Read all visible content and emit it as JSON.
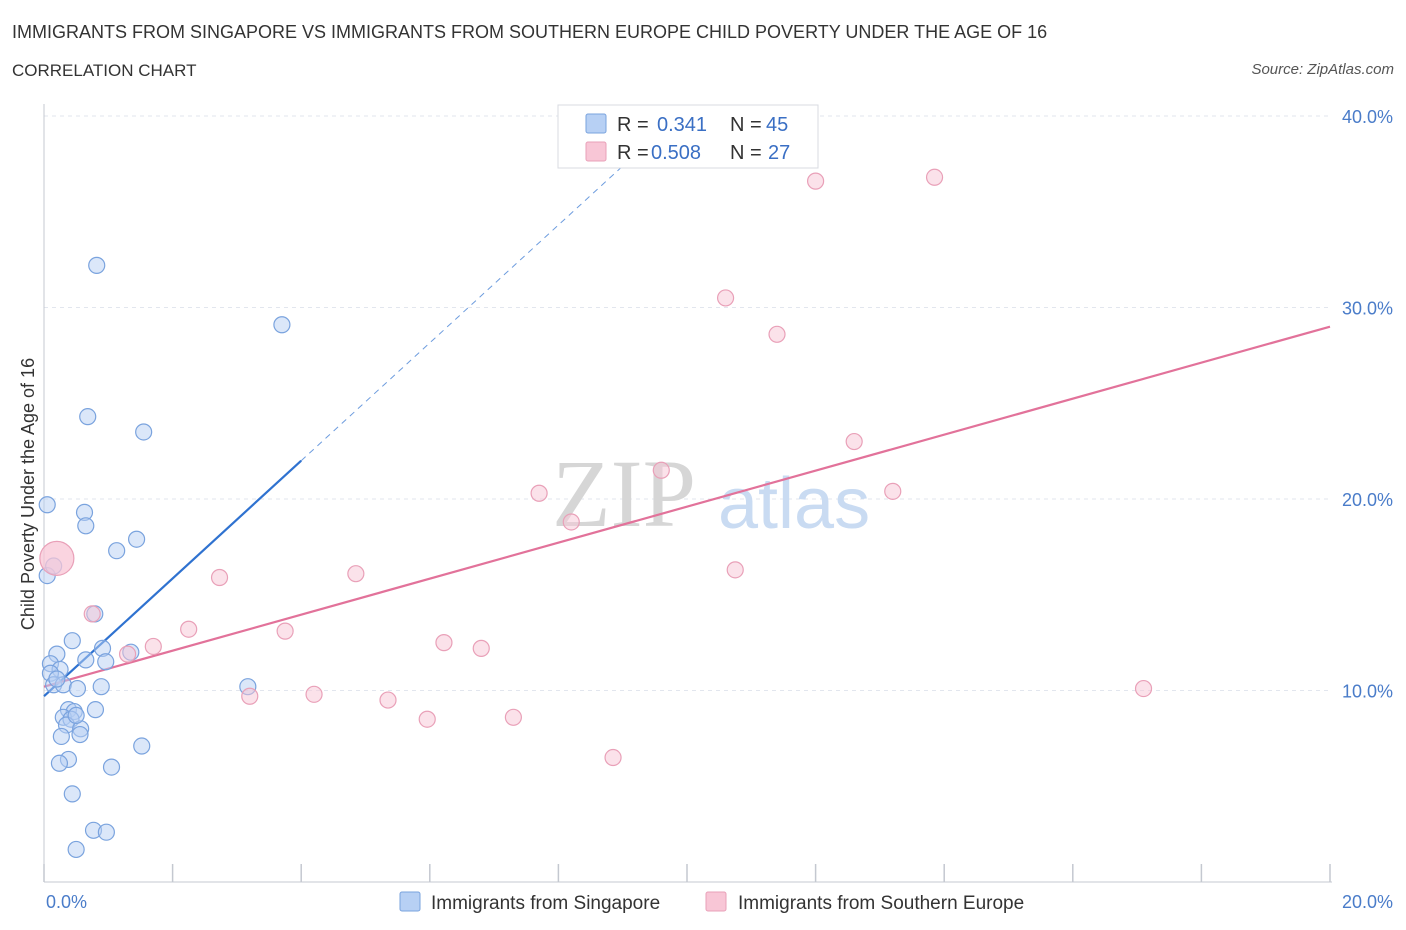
{
  "title": "IMMIGRANTS FROM SINGAPORE VS IMMIGRANTS FROM SOUTHERN EUROPE CHILD POVERTY UNDER THE AGE OF 16",
  "subtitle": "CORRELATION CHART",
  "source": "Source: ZipAtlas.com",
  "watermark": {
    "zip": "ZIP",
    "atlas": "atlas"
  },
  "colors": {
    "blue_fill": "#b7d0f4",
    "blue_stroke": "#7aa3de",
    "blue_line": "#2f72d0",
    "pink_fill": "#f8c6d6",
    "pink_stroke": "#e9a0b8",
    "pink_line": "#e2729a",
    "grid": "#e2e6ee",
    "tick_text": "#4a7cc9"
  },
  "stats": {
    "r_label": "R =",
    "n_label": "N =",
    "rows": [
      {
        "r": "0.341",
        "n": "45",
        "color": "blue"
      },
      {
        "r": "0.508",
        "n": "27",
        "color": "pink"
      }
    ]
  },
  "chart_data": {
    "type": "scatter",
    "title": "IMMIGRANTS FROM SINGAPORE VS IMMIGRANTS FROM SOUTHERN EUROPE CHILD POVERTY UNDER THE AGE OF 16",
    "xlabel": "",
    "ylabel": "Child Poverty Under the Age of 16",
    "xlim": [
      0,
      20
    ],
    "ylim": [
      0,
      40
    ],
    "x_tick_labels": [
      {
        "value": 0,
        "label": "0.0%"
      },
      {
        "value": 20,
        "label": "20.0%"
      }
    ],
    "y_tick_labels": [
      {
        "value": 10,
        "label": "10.0%"
      },
      {
        "value": 20,
        "label": "20.0%"
      },
      {
        "value": 30,
        "label": "30.0%"
      },
      {
        "value": 40,
        "label": "40.0%"
      }
    ],
    "x_minor_ticks": [
      0,
      2,
      4,
      6,
      8,
      10,
      12,
      14,
      16,
      18,
      20
    ],
    "legend": [
      "Immigrants from Singapore",
      "Immigrants from Southern Europe"
    ],
    "series": [
      {
        "name": "Immigrants from Singapore",
        "color": "blue",
        "points": [
          [
            0.82,
            32.2
          ],
          [
            3.7,
            29.1
          ],
          [
            0.68,
            24.3
          ],
          [
            1.55,
            23.5
          ],
          [
            0.05,
            19.7
          ],
          [
            0.63,
            19.3
          ],
          [
            0.65,
            18.6
          ],
          [
            1.44,
            17.9
          ],
          [
            1.13,
            17.3
          ],
          [
            0.05,
            16.0
          ],
          [
            0.79,
            14.0
          ],
          [
            0.44,
            12.6
          ],
          [
            1.35,
            12.0
          ],
          [
            0.2,
            11.9
          ],
          [
            0.91,
            12.2
          ],
          [
            0.65,
            11.6
          ],
          [
            0.96,
            11.5
          ],
          [
            0.1,
            11.4
          ],
          [
            0.25,
            11.1
          ],
          [
            0.1,
            10.9
          ],
          [
            0.15,
            10.3
          ],
          [
            0.3,
            10.3
          ],
          [
            0.52,
            10.1
          ],
          [
            0.89,
            10.2
          ],
          [
            3.17,
            10.2
          ],
          [
            0.38,
            9.0
          ],
          [
            0.47,
            8.9
          ],
          [
            0.8,
            9.0
          ],
          [
            0.3,
            8.6
          ],
          [
            0.42,
            8.5
          ],
          [
            0.35,
            8.2
          ],
          [
            0.57,
            8.0
          ],
          [
            0.27,
            7.6
          ],
          [
            0.56,
            7.7
          ],
          [
            1.52,
            7.1
          ],
          [
            0.38,
            6.4
          ],
          [
            0.24,
            6.2
          ],
          [
            1.05,
            6.0
          ],
          [
            0.44,
            4.6
          ],
          [
            0.77,
            2.7
          ],
          [
            0.97,
            2.6
          ],
          [
            0.5,
            1.7
          ],
          [
            0.15,
            16.5
          ],
          [
            0.2,
            10.6
          ],
          [
            0.5,
            8.7
          ]
        ],
        "trend": [
          [
            0.0,
            9.7
          ],
          [
            4.0,
            22.0
          ]
        ],
        "trend_ext": [
          [
            4.0,
            22.0
          ],
          [
            9.2,
            38.0
          ]
        ]
      },
      {
        "name": "Immigrants from Southern Europe",
        "color": "pink",
        "points": [
          [
            0.2,
            16.9
          ],
          [
            12.0,
            36.6
          ],
          [
            13.85,
            36.8
          ],
          [
            10.6,
            30.5
          ],
          [
            11.4,
            28.6
          ],
          [
            12.6,
            23.0
          ],
          [
            9.6,
            21.5
          ],
          [
            7.7,
            20.3
          ],
          [
            13.2,
            20.4
          ],
          [
            8.2,
            18.8
          ],
          [
            2.73,
            15.9
          ],
          [
            4.85,
            16.1
          ],
          [
            10.75,
            16.3
          ],
          [
            0.75,
            14.0
          ],
          [
            1.7,
            12.3
          ],
          [
            2.25,
            13.2
          ],
          [
            3.75,
            13.1
          ],
          [
            6.22,
            12.5
          ],
          [
            6.8,
            12.2
          ],
          [
            1.3,
            11.9
          ],
          [
            3.2,
            9.7
          ],
          [
            4.2,
            9.8
          ],
          [
            5.35,
            9.5
          ],
          [
            5.96,
            8.5
          ],
          [
            7.3,
            8.6
          ],
          [
            8.85,
            6.5
          ],
          [
            17.1,
            10.1
          ]
        ],
        "trend": [
          [
            0.0,
            10.2
          ],
          [
            20.0,
            29.0
          ]
        ]
      }
    ]
  }
}
